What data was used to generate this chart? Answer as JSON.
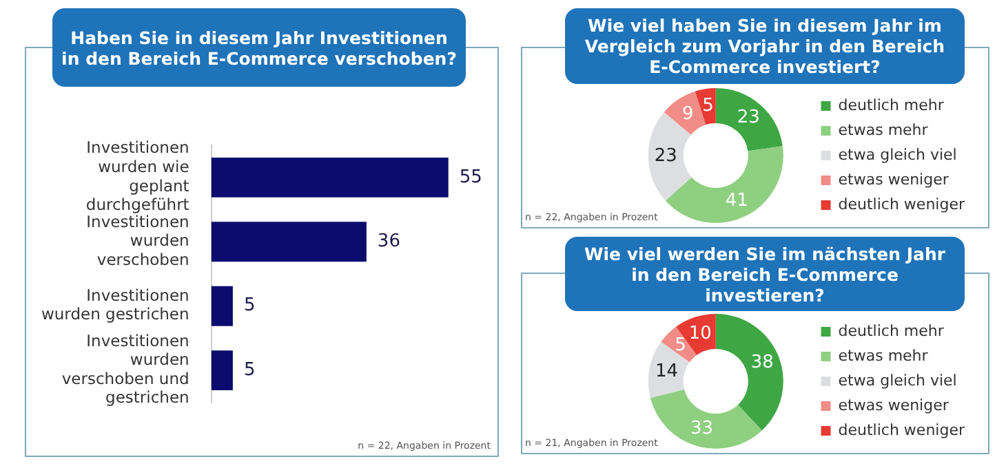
{
  "chart_data": [
    {
      "type": "bar",
      "orientation": "horizontal",
      "title": "Haben Sie in diesem Jahr Investitionen in den Bereich E-Commerce verschoben?",
      "categories": [
        "Investitionen wurden wie geplant durchgeführt",
        "Investitionen wurden verschoben",
        "Investitionen wurden gestrichen",
        "Investitionen wurden verschoben und gestrichen"
      ],
      "values": [
        55,
        36,
        5,
        5
      ],
      "color": "#0c0c6e",
      "data_labels": true,
      "legend": false,
      "annotations": [
        "n = 22, Angaben in Prozent"
      ]
    },
    {
      "type": "donut",
      "title": "Wie viel haben Sie in diesem Jahr im Vergleich zum Vorjahr in den Bereich E-Commerce investiert?",
      "categories": [
        "deutlich mehr",
        "etwas mehr",
        "etwa gleich viel",
        "etwas weniger",
        "deutlich weniger"
      ],
      "values": [
        23,
        41,
        23,
        9,
        5
      ],
      "colors": [
        "#3ea744",
        "#8ecf80",
        "#dddee2",
        "#f28c86",
        "#e63a32"
      ],
      "data_labels": true,
      "legend": "right",
      "annotations": [
        "n = 22, Angaben in Prozent"
      ]
    },
    {
      "type": "donut",
      "title": "Wie viel werden Sie im nächsten Jahr in den Bereich E-Commerce investieren?",
      "categories": [
        "deutlich mehr",
        "etwas mehr",
        "etwa gleich viel",
        "etwas weniger",
        "deutlich weniger"
      ],
      "values": [
        38,
        33,
        14,
        5,
        10
      ],
      "colors": [
        "#3ea744",
        "#8ecf80",
        "#dddee2",
        "#f28c86",
        "#e63a32"
      ],
      "data_labels": true,
      "legend": "right",
      "annotations": [
        "n = 21, Angaben in Prozent"
      ]
    }
  ]
}
